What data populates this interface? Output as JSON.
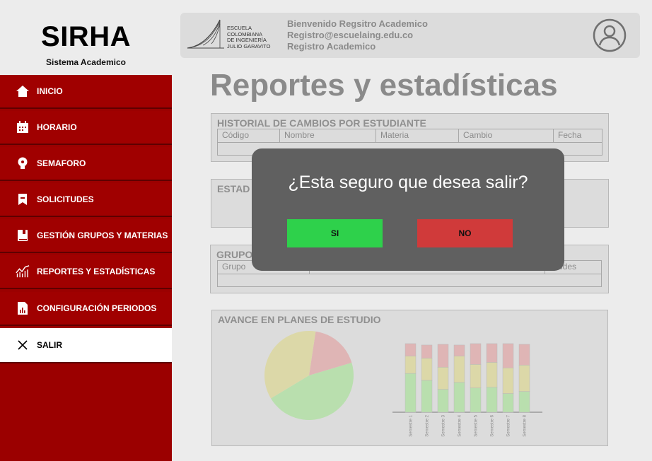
{
  "brand": {
    "title": "SIRHA",
    "subtitle": "Sistema Academico"
  },
  "sidebar": {
    "items": [
      {
        "label": "INICIO",
        "icon": "home-icon"
      },
      {
        "label": "HORARIO",
        "icon": "calendar-icon"
      },
      {
        "label": "SEMAFORO",
        "icon": "bulb-icon"
      },
      {
        "label": "SOLICITUDES",
        "icon": "bookmark-icon"
      },
      {
        "label": "GESTIÓN GRUPOS Y MATERIAS",
        "icon": "book-icon"
      },
      {
        "label": "REPORTES Y ESTADÍSTICAS",
        "icon": "chart-line-icon"
      },
      {
        "label": "CONFIGURACIÓN PERIODOS",
        "icon": "report-file-icon"
      },
      {
        "label": "SALIR",
        "icon": "close-icon"
      }
    ],
    "active": "SALIR"
  },
  "header": {
    "logo_lines": [
      "ESCUELA",
      "COLOMBIANA",
      "DE INGENIERÍA",
      "JULIO GARAVITO"
    ],
    "welcome": "Bienvenido Regsitro Academico",
    "email": "Registro@escuelaing.edu.co",
    "role": "Registro Academico"
  },
  "main": {
    "title": "Reportes y estadísticas",
    "historial": {
      "title": "HISTORIAL DE CAMBIOS POR ESTUDIANTE",
      "columns": [
        "Código",
        "Nombre",
        "Materia",
        "Cambio",
        "Fecha"
      ]
    },
    "estado": {
      "title": "ESTAD"
    },
    "grupos": {
      "title": "GRUPO",
      "columns": [
        "Grupo",
        "citudes"
      ]
    },
    "avance": {
      "title": "AVANCE EN PLANES DE ESTUDIO"
    }
  },
  "modal": {
    "question": "¿Esta seguro que desea salir?",
    "yes_label": "SI",
    "no_label": "NO"
  },
  "colors": {
    "sidebar": "#a00000",
    "yes": "#2ed14b",
    "no": "#d03a3a",
    "modal": "#606060",
    "pie_green": "#b9dfae",
    "pie_yellow": "#dcd8a8",
    "pie_red": "#dfb5b5"
  },
  "chart_data": [
    {
      "type": "pie",
      "title": "",
      "values": [
        0.46,
        0.36,
        0.18
      ],
      "colors": [
        "#b9dfae",
        "#dcd8a8",
        "#dfb5b5"
      ]
    },
    {
      "type": "bar",
      "title": "",
      "stacked": true,
      "categories": [
        "Semestre 1",
        "Semestre 2",
        "Semestre 3",
        "Semestre 4",
        "Semestre 5",
        "Semestre 6",
        "Semestre 7",
        "Semestre 8"
      ],
      "series": [
        {
          "values": [
            56,
            46,
            33,
            43,
            35,
            36,
            27,
            30
          ],
          "color": "#b9dfae"
        },
        {
          "values": [
            25,
            32,
            32,
            38,
            34,
            36,
            37,
            38
          ],
          "color": "#dcd8a8"
        },
        {
          "values": [
            18,
            19,
            33,
            16,
            30,
            27,
            35,
            30
          ],
          "color": "#dfb5b5"
        }
      ]
    }
  ]
}
